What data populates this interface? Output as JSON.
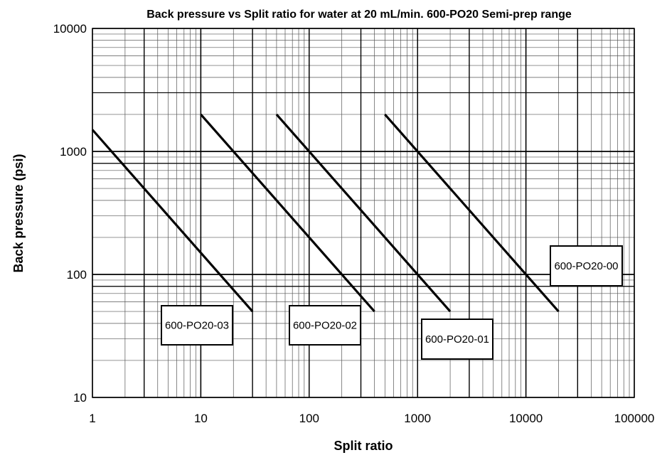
{
  "chart_data": {
    "type": "line",
    "title": "Back pressure vs Split ratio for water at 20 mL/min. 600-PO20 Semi-prep range",
    "xlabel": "Split ratio",
    "ylabel": "Back pressure (psi)",
    "xscale": "log",
    "yscale": "log",
    "xlim": [
      1,
      100000
    ],
    "ylim": [
      10,
      10000
    ],
    "xticks": [
      "1",
      "10",
      "100",
      "1000",
      "10000",
      "100000"
    ],
    "yticks": [
      "10",
      "100",
      "1000",
      "10000"
    ],
    "grid": true,
    "extra_horizontal_lines": [
      80,
      800,
      3000
    ],
    "series": [
      {
        "name": "600-PO20-03",
        "x": [
          1,
          30
        ],
        "y": [
          1500,
          50
        ]
      },
      {
        "name": "600-PO20-02",
        "x": [
          10,
          400
        ],
        "y": [
          2000,
          50
        ]
      },
      {
        "name": "600-PO20-01",
        "x": [
          50,
          2000
        ],
        "y": [
          2000,
          50
        ]
      },
      {
        "name": "600-PO20-00",
        "x": [
          500,
          20000
        ],
        "y": [
          2000,
          50
        ]
      }
    ]
  }
}
